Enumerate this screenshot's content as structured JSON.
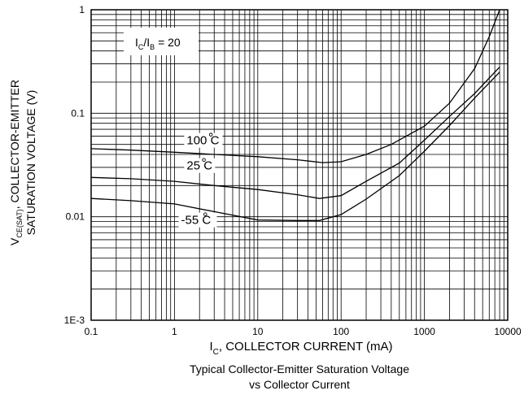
{
  "chart_data": {
    "type": "line",
    "title": "Typical Collector-Emitter Saturation Voltage",
    "subtitle": "vs Collector Current",
    "xlabel": {
      "main": "I",
      "sub": "C",
      "rest": ", COLLECTOR CURRENT (mA)"
    },
    "ylabel": {
      "line1_main": "V",
      "line1_sub": "CE(SAT)",
      "line1_rest": ", COLLECTOR-EMITTER",
      "line2": "SATURATION VOLTAGE (V)"
    },
    "x_scale": "log",
    "y_scale": "log",
    "xlim": [
      0.1,
      10000
    ],
    "ylim": [
      0.001,
      1
    ],
    "grid": true,
    "x_ticks": [
      {
        "value": 0.1,
        "label": "0.1"
      },
      {
        "value": 1,
        "label": "1"
      },
      {
        "value": 10,
        "label": "10"
      },
      {
        "value": 100,
        "label": "100"
      },
      {
        "value": 1000,
        "label": "1000"
      },
      {
        "value": 10000,
        "label": "10000"
      }
    ],
    "y_ticks": [
      {
        "value": 0.001,
        "label": "1E-3"
      },
      {
        "value": 0.01,
        "label": "0.01"
      },
      {
        "value": 0.1,
        "label": "0.1"
      },
      {
        "value": 1,
        "label": "1"
      }
    ],
    "annotation": {
      "main1": "I",
      "sub1": "C",
      "slash": "/I",
      "sub2": "B",
      "rest": " = 20"
    },
    "series": [
      {
        "name": "100°C",
        "label_main": "100",
        "label_unit": "C",
        "label_at": [
          1.4,
          0.05
        ],
        "points": [
          [
            0.1,
            0.0455
          ],
          [
            0.3,
            0.044
          ],
          [
            1,
            0.042
          ],
          [
            3,
            0.04
          ],
          [
            10,
            0.038
          ],
          [
            30,
            0.0355
          ],
          [
            60,
            0.0333
          ],
          [
            100,
            0.034
          ],
          [
            200,
            0.04
          ],
          [
            400,
            0.05
          ],
          [
            1000,
            0.075
          ],
          [
            2000,
            0.125
          ],
          [
            4000,
            0.27
          ],
          [
            6000,
            0.55
          ],
          [
            8000,
            1.0
          ]
        ]
      },
      {
        "name": "25°C",
        "label_main": "25",
        "label_unit": "C",
        "label_at": [
          1.4,
          0.0285
        ],
        "points": [
          [
            0.1,
            0.024
          ],
          [
            0.3,
            0.0233
          ],
          [
            1,
            0.022
          ],
          [
            3,
            0.02
          ],
          [
            10,
            0.0183
          ],
          [
            30,
            0.0163
          ],
          [
            55,
            0.015
          ],
          [
            100,
            0.016
          ],
          [
            200,
            0.022
          ],
          [
            500,
            0.033
          ],
          [
            1000,
            0.055
          ],
          [
            2000,
            0.093
          ],
          [
            4000,
            0.155
          ],
          [
            8000,
            0.28
          ]
        ]
      },
      {
        "name": "-55°C",
        "label_main": "-55",
        "label_unit": "C",
        "label_at": [
          1.2,
          0.0085
        ],
        "points": [
          [
            0.1,
            0.015
          ],
          [
            0.3,
            0.0143
          ],
          [
            1,
            0.0133
          ],
          [
            3,
            0.0112
          ],
          [
            10,
            0.0093
          ],
          [
            30,
            0.0092
          ],
          [
            55,
            0.0092
          ],
          [
            100,
            0.0105
          ],
          [
            200,
            0.0148
          ],
          [
            500,
            0.025
          ],
          [
            1000,
            0.043
          ],
          [
            2000,
            0.076
          ],
          [
            4000,
            0.14
          ],
          [
            8000,
            0.25
          ]
        ]
      }
    ]
  }
}
